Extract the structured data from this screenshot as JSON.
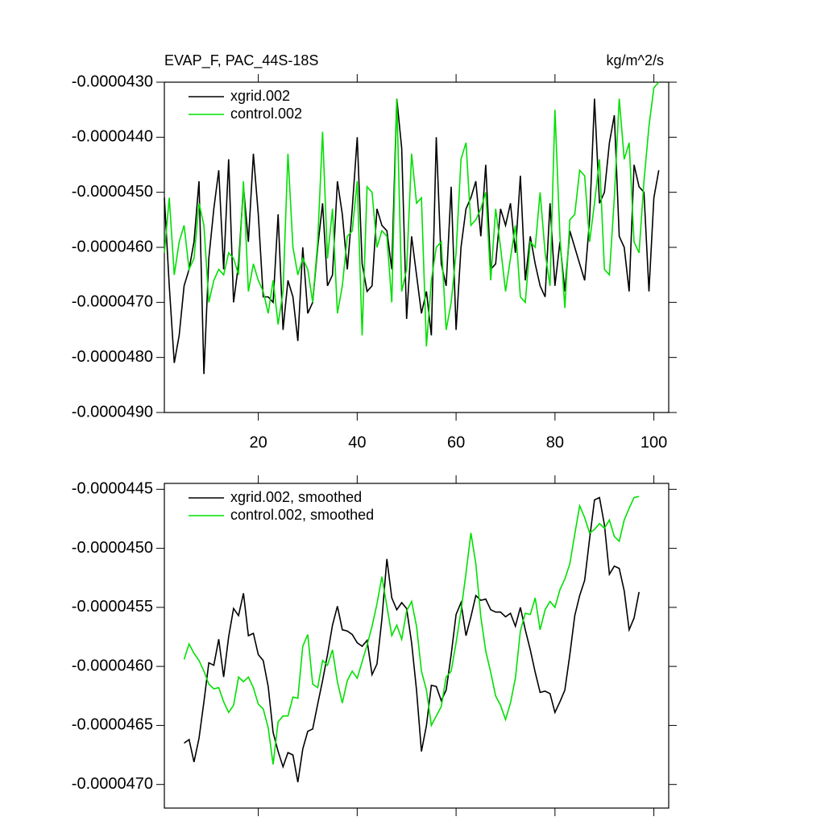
{
  "chart_data": [
    {
      "type": "line",
      "title": "EVAP_F, PAC_44S-18S",
      "units": "kg/m^2/s",
      "x": [
        1,
        2,
        3,
        4,
        5,
        6,
        7,
        8,
        9,
        10,
        11,
        12,
        13,
        14,
        15,
        16,
        17,
        18,
        19,
        20,
        21,
        22,
        23,
        24,
        25,
        26,
        27,
        28,
        29,
        30,
        31,
        32,
        33,
        34,
        35,
        36,
        37,
        38,
        39,
        40,
        41,
        42,
        43,
        44,
        45,
        46,
        47,
        48,
        49,
        50,
        51,
        52,
        53,
        54,
        55,
        56,
        57,
        58,
        59,
        60,
        61,
        62,
        63,
        64,
        65,
        66,
        67,
        68,
        69,
        70,
        71,
        72,
        73,
        74,
        75,
        76,
        77,
        78,
        79,
        80,
        81,
        82,
        83,
        84,
        85,
        86,
        87,
        88,
        89,
        90,
        91,
        92,
        93,
        94,
        95,
        96,
        97,
        98,
        99,
        100,
        101
      ],
      "series": [
        {
          "name": "xgrid.002",
          "color": "#000000",
          "values": [
            -4.51e-05,
            -4.67e-05,
            -4.81e-05,
            -4.76e-05,
            -4.67e-05,
            -4.64e-05,
            -4.59e-05,
            -4.48e-05,
            -4.83e-05,
            -4.62e-05,
            -4.53e-05,
            -4.46e-05,
            -4.64e-05,
            -4.44e-05,
            -4.7e-05,
            -4.63e-05,
            -4.49e-05,
            -4.59e-05,
            -4.43e-05,
            -4.54e-05,
            -4.69e-05,
            -4.69e-05,
            -4.7e-05,
            -4.54e-05,
            -4.75e-05,
            -4.66e-05,
            -4.69e-05,
            -4.77e-05,
            -4.6e-05,
            -4.72e-05,
            -4.7e-05,
            -4.6e-05,
            -4.52e-05,
            -4.67e-05,
            -4.65e-05,
            -4.48e-05,
            -4.54e-05,
            -4.64e-05,
            -4.53e-05,
            -4.4e-05,
            -4.63e-05,
            -4.68e-05,
            -4.67e-05,
            -4.53e-05,
            -4.56e-05,
            -4.57e-05,
            -4.64e-05,
            -4.33e-05,
            -4.42e-05,
            -4.73e-05,
            -4.58e-05,
            -4.65e-05,
            -4.72e-05,
            -4.68e-05,
            -4.76e-05,
            -4.4e-05,
            -4.63e-05,
            -4.67e-05,
            -4.49e-05,
            -4.75e-05,
            -4.6e-05,
            -4.53e-05,
            -4.51e-05,
            -4.48e-05,
            -4.58e-05,
            -4.45e-05,
            -4.64e-05,
            -4.63e-05,
            -4.53e-05,
            -4.56e-05,
            -4.52e-05,
            -4.61e-05,
            -4.47e-05,
            -4.66e-05,
            -4.58e-05,
            -4.63e-05,
            -4.67e-05,
            -4.69e-05,
            -4.52e-05,
            -4.67e-05,
            -4.59e-05,
            -4.68e-05,
            -4.57e-05,
            -4.6e-05,
            -4.63e-05,
            -4.66e-05,
            -4.55e-05,
            -4.33e-05,
            -4.52e-05,
            -4.5e-05,
            -4.41e-05,
            -4.36e-05,
            -4.58e-05,
            -4.6e-05,
            -4.68e-05,
            -4.45e-05,
            -4.49e-05,
            -4.5e-05,
            -4.68e-05,
            -4.51e-05,
            -4.46e-05
          ]
        },
        {
          "name": "control.002",
          "color": "#00e000",
          "values": [
            -4.61e-05,
            -4.51e-05,
            -4.65e-05,
            -4.59e-05,
            -4.56e-05,
            -4.64e-05,
            -4.62e-05,
            -4.52e-05,
            -4.56e-05,
            -4.7e-05,
            -4.66e-05,
            -4.64e-05,
            -4.65e-05,
            -4.61e-05,
            -4.62e-05,
            -4.65e-05,
            -4.48e-05,
            -4.68e-05,
            -4.63e-05,
            -4.66e-05,
            -4.68e-05,
            -4.72e-05,
            -4.66e-05,
            -4.74e-05,
            -4.68e-05,
            -4.43e-05,
            -4.6e-05,
            -4.65e-05,
            -4.62e-05,
            -4.64e-05,
            -4.7e-05,
            -4.59e-05,
            -4.39e-05,
            -4.62e-05,
            -4.53e-05,
            -4.72e-05,
            -4.67e-05,
            -4.58e-05,
            -4.57e-05,
            -4.48e-05,
            -4.76e-05,
            -4.49e-05,
            -4.5e-05,
            -4.6e-05,
            -4.57e-05,
            -4.58e-05,
            -4.7e-05,
            -4.33e-05,
            -4.68e-05,
            -4.64e-05,
            -4.43e-05,
            -4.52e-05,
            -4.51e-05,
            -4.78e-05,
            -4.66e-05,
            -4.6e-05,
            -4.59e-05,
            -4.75e-05,
            -4.7e-05,
            -4.61e-05,
            -4.44e-05,
            -4.41e-05,
            -4.56e-05,
            -4.55e-05,
            -4.53e-05,
            -4.5e-05,
            -4.66e-05,
            -4.53e-05,
            -4.6e-05,
            -4.68e-05,
            -4.62e-05,
            -4.56e-05,
            -4.69e-05,
            -4.7e-05,
            -4.59e-05,
            -4.6e-05,
            -4.5e-05,
            -4.61e-05,
            -4.67e-05,
            -4.35e-05,
            -4.58e-05,
            -4.71e-05,
            -4.55e-05,
            -4.54e-05,
            -4.46e-05,
            -4.47e-05,
            -4.59e-05,
            -4.52e-05,
            -4.44e-05,
            -4.64e-05,
            -4.65e-05,
            -4.51e-05,
            -4.33e-05,
            -4.44e-05,
            -4.41e-05,
            -4.59e-05,
            -4.61e-05,
            -4.48e-05,
            -4.38e-05,
            -4.31e-05,
            -4.3e-05
          ]
        }
      ],
      "xlim": [
        1,
        103
      ],
      "xticks": [
        20,
        40,
        60,
        80,
        100
      ],
      "show_x_tick_labels": true,
      "ylim": [
        -4.9e-05,
        -4.3e-05
      ],
      "yticks": [
        {
          "value": -4.3e-05,
          "label": "-0.0000430"
        },
        {
          "value": -4.4e-05,
          "label": "-0.0000440"
        },
        {
          "value": -4.5e-05,
          "label": "-0.0000450"
        },
        {
          "value": -4.6e-05,
          "label": "-0.0000460"
        },
        {
          "value": -4.7e-05,
          "label": "-0.0000470"
        },
        {
          "value": -4.8e-05,
          "label": "-0.0000480"
        },
        {
          "value": -4.9e-05,
          "label": "-0.0000490"
        }
      ],
      "legend": "upper left"
    },
    {
      "type": "line",
      "x": [
        5,
        6,
        7,
        8,
        9,
        10,
        11,
        12,
        13,
        14,
        15,
        16,
        17,
        18,
        19,
        20,
        21,
        22,
        23,
        24,
        25,
        26,
        27,
        28,
        29,
        30,
        31,
        32,
        33,
        34,
        35,
        36,
        37,
        38,
        39,
        40,
        41,
        42,
        43,
        44,
        45,
        46,
        47,
        48,
        49,
        50,
        51,
        52,
        53,
        54,
        55,
        56,
        57,
        58,
        59,
        60,
        61,
        62,
        63,
        64,
        65,
        66,
        67,
        68,
        69,
        70,
        71,
        72,
        73,
        74,
        75,
        76,
        77,
        78,
        79,
        80,
        81,
        82,
        83,
        84,
        85,
        86,
        87,
        88,
        89,
        90,
        91,
        92,
        93,
        94,
        95,
        96,
        97
      ],
      "series": [
        {
          "name": "xgrid.002, smoothed",
          "color": "#000000",
          "values": [
            -4.665e-05,
            -4.662e-05,
            -4.681e-05,
            -4.661e-05,
            -4.63e-05,
            -4.597e-05,
            -4.599e-05,
            -4.577e-05,
            -4.609e-05,
            -4.575e-05,
            -4.551e-05,
            -4.557e-05,
            -4.538e-05,
            -4.574e-05,
            -4.572e-05,
            -4.59e-05,
            -4.595e-05,
            -4.617e-05,
            -4.656e-05,
            -4.672e-05,
            -4.685e-05,
            -4.673e-05,
            -4.675e-05,
            -4.698e-05,
            -4.67e-05,
            -4.655e-05,
            -4.653e-05,
            -4.632e-05,
            -4.612e-05,
            -4.59e-05,
            -4.565e-05,
            -4.549e-05,
            -4.569e-05,
            -4.57e-05,
            -4.573e-05,
            -4.58e-05,
            -4.583e-05,
            -4.578e-05,
            -4.607e-05,
            -4.598e-05,
            -4.56e-05,
            -4.509e-05,
            -4.542e-05,
            -4.552e-05,
            -4.546e-05,
            -4.551e-05,
            -4.58e-05,
            -4.62e-05,
            -4.672e-05,
            -4.65e-05,
            -4.616e-05,
            -4.617e-05,
            -4.629e-05,
            -4.62e-05,
            -4.59e-05,
            -4.556e-05,
            -4.546e-05,
            -4.574e-05,
            -4.558e-05,
            -4.54e-05,
            -4.544e-05,
            -4.543e-05,
            -4.552e-05,
            -4.554e-05,
            -4.554e-05,
            -4.558e-05,
            -4.555e-05,
            -4.566e-05,
            -4.55e-05,
            -4.569e-05,
            -4.586e-05,
            -4.605e-05,
            -4.622e-05,
            -4.621e-05,
            -4.623e-05,
            -4.639e-05,
            -4.63e-05,
            -4.62e-05,
            -4.59e-05,
            -4.557e-05,
            -4.54e-05,
            -4.527e-05,
            -4.492e-05,
            -4.459e-05,
            -4.457e-05,
            -4.48e-05,
            -4.522e-05,
            -4.515e-05,
            -4.517e-05,
            -4.536e-05,
            -4.569e-05,
            -4.559e-05,
            -4.537e-05
          ]
        },
        {
          "name": "control.002, smoothed",
          "color": "#00e000",
          "values": [
            -4.594e-05,
            -4.581e-05,
            -4.589e-05,
            -4.595e-05,
            -4.604e-05,
            -4.615e-05,
            -4.619e-05,
            -4.618e-05,
            -4.63e-05,
            -4.639e-05,
            -4.633e-05,
            -4.609e-05,
            -4.613e-05,
            -4.609e-05,
            -4.618e-05,
            -4.632e-05,
            -4.636e-05,
            -4.652e-05,
            -4.683e-05,
            -4.647e-05,
            -4.642e-05,
            -4.642e-05,
            -4.626e-05,
            -4.627e-05,
            -4.583e-05,
            -4.573e-05,
            -4.615e-05,
            -4.618e-05,
            -4.595e-05,
            -4.599e-05,
            -4.586e-05,
            -4.613e-05,
            -4.631e-05,
            -4.612e-05,
            -4.604e-05,
            -4.61e-05,
            -4.596e-05,
            -4.582e-05,
            -4.566e-05,
            -4.547e-05,
            -4.524e-05,
            -4.549e-05,
            -4.574e-05,
            -4.565e-05,
            -4.577e-05,
            -4.553e-05,
            -4.545e-05,
            -4.566e-05,
            -4.604e-05,
            -4.62e-05,
            -4.65e-05,
            -4.642e-05,
            -4.634e-05,
            -4.609e-05,
            -4.604e-05,
            -4.58e-05,
            -4.553e-05,
            -4.521e-05,
            -4.487e-05,
            -4.513e-05,
            -4.558e-05,
            -4.587e-05,
            -4.605e-05,
            -4.625e-05,
            -4.633e-05,
            -4.645e-05,
            -4.631e-05,
            -4.61e-05,
            -4.57e-05,
            -4.555e-05,
            -4.556e-05,
            -4.542e-05,
            -4.569e-05,
            -4.552e-05,
            -4.545e-05,
            -4.55e-05,
            -4.535e-05,
            -4.526e-05,
            -4.513e-05,
            -4.488e-05,
            -4.464e-05,
            -4.474e-05,
            -4.487e-05,
            -4.484e-05,
            -4.479e-05,
            -4.483e-05,
            -4.476e-05,
            -4.49e-05,
            -4.494e-05,
            -4.476e-05,
            -4.466e-05,
            -4.457e-05,
            -4.456e-05
          ]
        }
      ],
      "xlim": [
        1,
        103
      ],
      "xticks": [
        20,
        40,
        60,
        80,
        100
      ],
      "show_x_tick_labels": false,
      "ylim": [
        -4.72e-05,
        -4.445e-05
      ],
      "yticks": [
        {
          "value": -4.45e-05,
          "label": "-0.0000445"
        },
        {
          "value": -4.5e-05,
          "label": "-0.0000450"
        },
        {
          "value": -4.55e-05,
          "label": "-0.0000455"
        },
        {
          "value": -4.6e-05,
          "label": "-0.0000460"
        },
        {
          "value": -4.65e-05,
          "label": "-0.0000465"
        },
        {
          "value": -4.7e-05,
          "label": "-0.0000470"
        }
      ],
      "legend": "upper left"
    }
  ]
}
